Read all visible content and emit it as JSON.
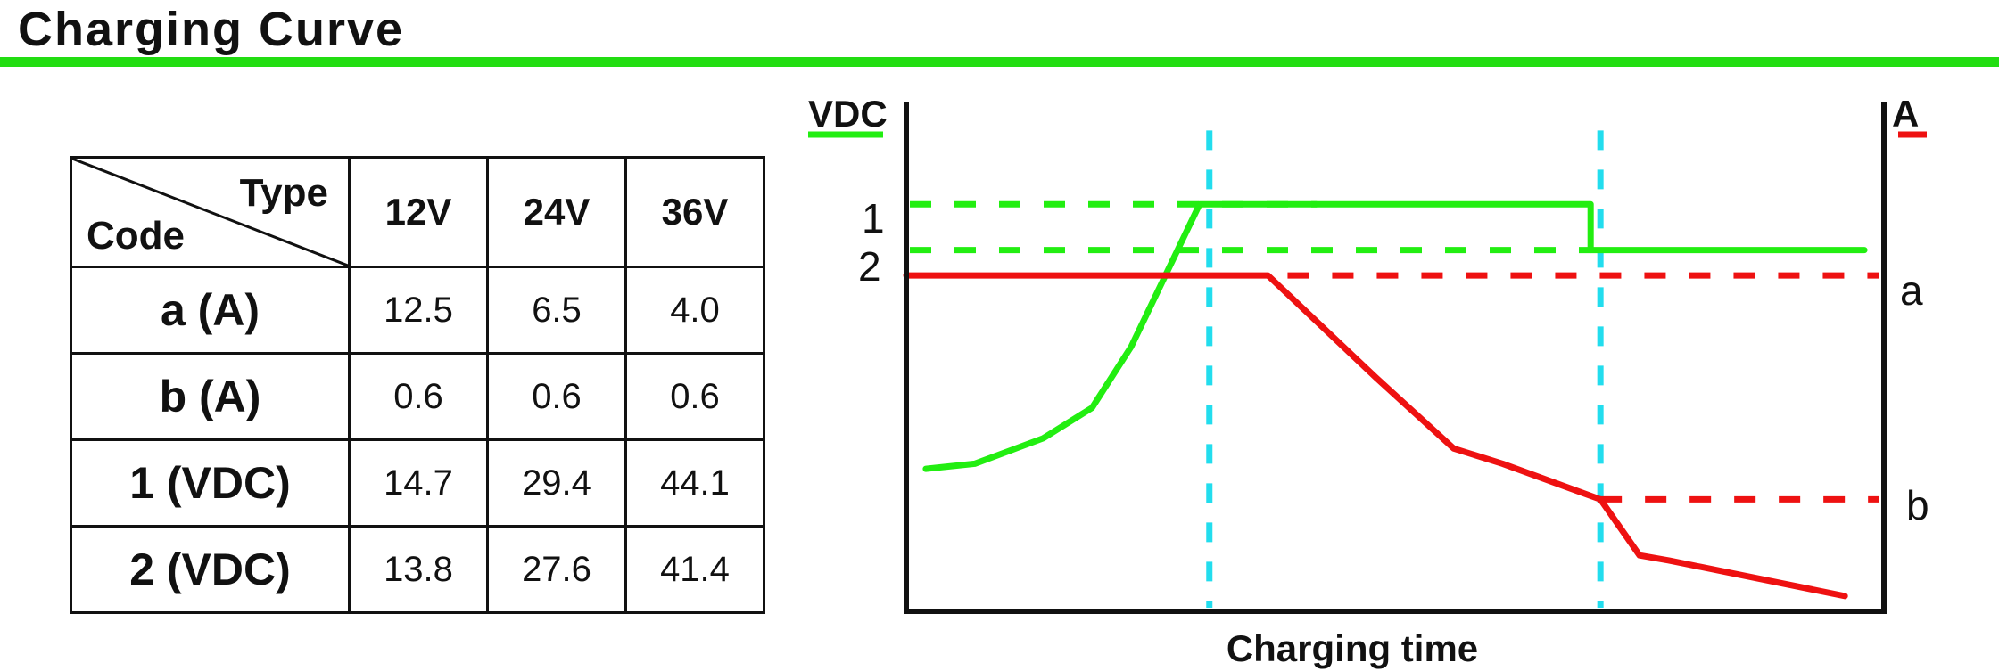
{
  "header": {
    "title": "Charging Curve"
  },
  "table": {
    "corner_top": "Type",
    "corner_bottom": "Code",
    "columns": [
      "12V",
      "24V",
      "36V"
    ],
    "rows": [
      {
        "label": "a (A)",
        "values": [
          "12.5",
          "6.5",
          "4.0"
        ]
      },
      {
        "label": "b (A)",
        "values": [
          "0.6",
          "0.6",
          "0.6"
        ]
      },
      {
        "label": "1 (VDC)",
        "values": [
          "14.7",
          "29.4",
          "44.1"
        ]
      },
      {
        "label": "2 (VDC)",
        "values": [
          "13.8",
          "27.6",
          "41.4"
        ]
      }
    ]
  },
  "chart_data": {
    "type": "line",
    "xlabel": "Charging time",
    "ylabel_left": "VDC",
    "ylabel_right": "A",
    "grid": false,
    "left_ticks": [
      "1",
      "2"
    ],
    "right_ticks": [
      "a",
      "b"
    ],
    "colors": {
      "voltage": "#22ee11",
      "current": "#ee1111",
      "phase": "#22ddee"
    },
    "series": [
      {
        "name": "VDC",
        "axis": "left",
        "color": "#22ee11",
        "points": [
          [
            0.02,
            0.28
          ],
          [
            0.07,
            0.29
          ],
          [
            0.14,
            0.34
          ],
          [
            0.19,
            0.4
          ],
          [
            0.23,
            0.52
          ],
          [
            0.3,
            0.8
          ],
          [
            0.7,
            0.8
          ],
          [
            0.7,
            0.71
          ],
          [
            0.98,
            0.71
          ]
        ]
      },
      {
        "name": "A",
        "axis": "right",
        "color": "#ee1111",
        "points": [
          [
            0.0,
            0.66
          ],
          [
            0.37,
            0.66
          ],
          [
            0.48,
            0.46
          ],
          [
            0.56,
            0.32
          ],
          [
            0.61,
            0.29
          ],
          [
            0.71,
            0.22
          ],
          [
            0.75,
            0.11
          ],
          [
            0.78,
            0.1
          ],
          [
            0.96,
            0.03
          ]
        ]
      }
    ],
    "reference_levels": {
      "1": 0.8,
      "2": 0.71,
      "a": 0.66,
      "b": 0.22
    },
    "phase_boundaries": [
      0.31,
      0.71
    ]
  }
}
